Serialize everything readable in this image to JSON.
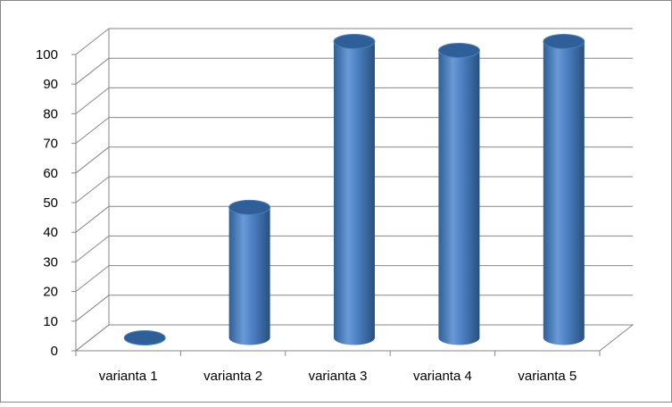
{
  "chart_data": {
    "type": "bar3d",
    "categories": [
      "varianta 1",
      "varianta 2",
      "varianta 3",
      "varianta 4",
      "varianta 5"
    ],
    "values": [
      0,
      44,
      100,
      97,
      100
    ],
    "color": "#4a7ebb",
    "ylim": [
      0,
      100
    ],
    "yticks": [
      0,
      10,
      20,
      30,
      40,
      50,
      60,
      70,
      80,
      90,
      100
    ],
    "grid": true
  }
}
